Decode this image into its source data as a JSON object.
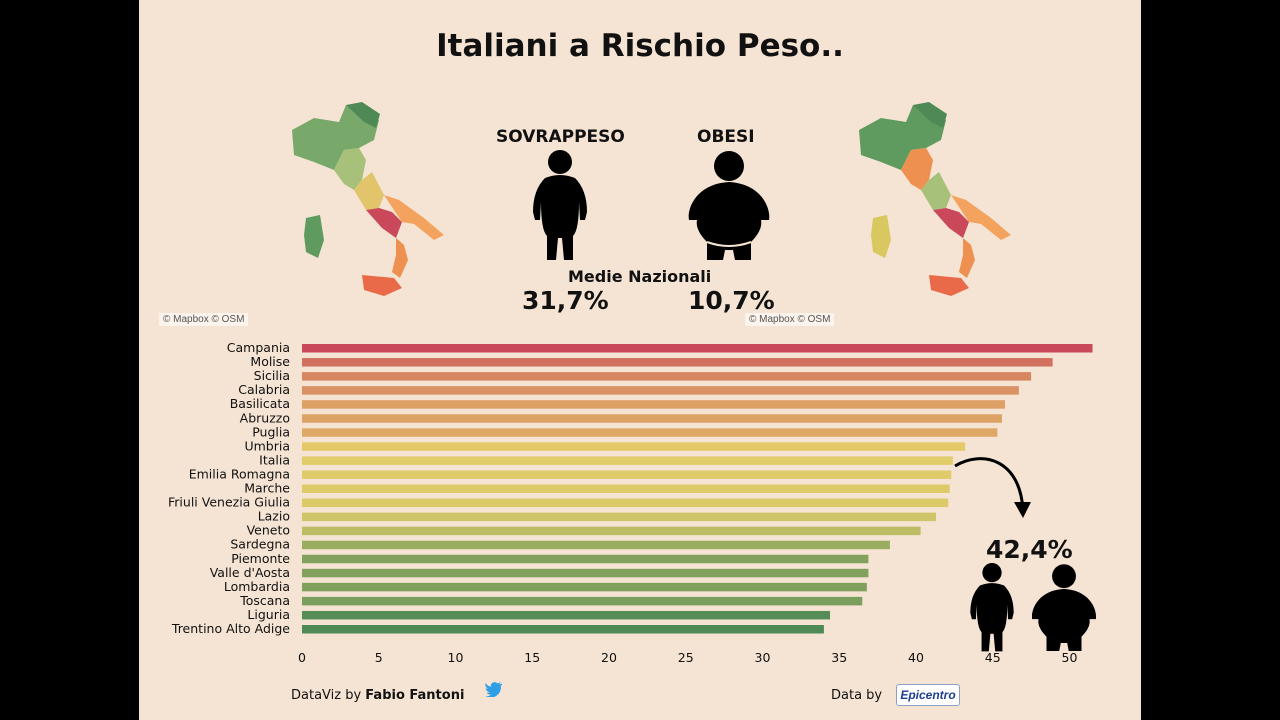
{
  "title": "Italiani a Rischio Peso..",
  "figures": {
    "overweight_label": "SOVRAPPESO",
    "obese_label": "OBESI",
    "national_label": "Medie Nazionali",
    "overweight_value": "31,7%",
    "obese_value": "10,7%"
  },
  "map_attribution": "© Mapbox © OSM",
  "callout": {
    "value": "42,4%"
  },
  "footer": {
    "dataviz_prefix": "DataViz by ",
    "author": "Fabio Fantoni",
    "data_by": "Data by",
    "source_logo": "Epicentro"
  },
  "colors": {
    "background": "#f5e4d4",
    "high": "#c9485a",
    "mid": "#e7cf6b",
    "low": "#4f8a56"
  },
  "chart_data": {
    "type": "bar",
    "orientation": "horizontal",
    "categories": [
      "Campania",
      "Molise",
      "Sicilia",
      "Calabria",
      "Basilicata",
      "Abruzzo",
      "Puglia",
      "Umbria",
      "Italia",
      "Emilia Romagna",
      "Marche",
      "Friuli Venezia Giulia",
      "Lazio",
      "Veneto",
      "Sardegna",
      "Piemonte",
      "Valle d'Aosta",
      "Lombardia",
      "Toscana",
      "Liguria",
      "Trentino Alto Adige"
    ],
    "values": [
      51.5,
      48.9,
      47.5,
      46.7,
      45.8,
      45.6,
      45.3,
      43.2,
      42.4,
      42.3,
      42.2,
      42.1,
      41.3,
      40.3,
      38.3,
      36.9,
      36.9,
      36.8,
      36.5,
      34.4,
      34.0
    ],
    "xlim": [
      0,
      52
    ],
    "xticks": [
      0,
      5,
      10,
      15,
      20,
      25,
      30,
      35,
      40,
      45,
      50
    ],
    "xlabel": "",
    "ylabel": "",
    "grid": false
  }
}
